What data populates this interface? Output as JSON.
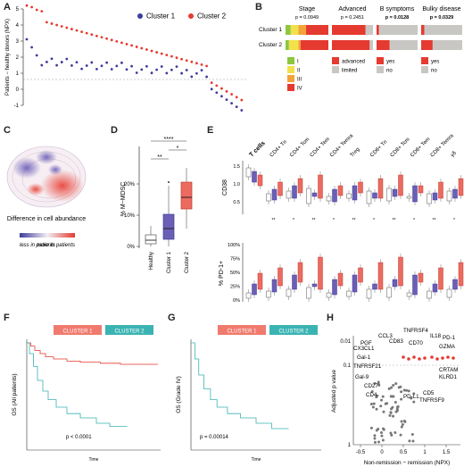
{
  "letters": {
    "a": "A",
    "b": "B",
    "c": "C",
    "d": "D",
    "e": "E",
    "f": "F",
    "g": "G",
    "h": "H"
  },
  "colors": {
    "cluster1": "#3d3b9c",
    "cluster2": "#e53a2f",
    "teal": "#3bb3b3",
    "salmon": "#f07a6e"
  },
  "panelA": {
    "ylabel": "Patients − healthy donors (NPX)",
    "legend1": "Cluster 1",
    "legend2": "Cluster 2",
    "yticks": [
      "5",
      "4",
      "3",
      "2",
      "1",
      "0",
      "-1"
    ]
  },
  "panelB": {
    "headers": [
      {
        "label": "Stage",
        "p": "p = 0.0949",
        "bold": false
      },
      {
        "label": "Advanced",
        "p": "p = 0.2451",
        "bold": false
      },
      {
        "label": "B symptoms",
        "p": "p = 0.0128",
        "bold": true
      },
      {
        "label": "Bulky disease",
        "p": "p = 0.0329",
        "bold": true
      }
    ],
    "rows": [
      "Cluster 1",
      "Cluster 2"
    ],
    "stage_legend": [
      "I",
      "II",
      "III",
      "IV"
    ],
    "advanced_legend": [
      "advanced",
      "limited"
    ],
    "bsym_legend": [
      "yes",
      "no"
    ],
    "bulky_legend": [
      "yes",
      "no"
    ]
  },
  "panelC": {
    "title": "Difference in cell abundance",
    "less": "less in patients",
    "more": "more in patients"
  },
  "panelD": {
    "ylabel": "% M−MDSC",
    "yticks": [
      "20%",
      "10%",
      "0%"
    ],
    "xticks": [
      "Healthy",
      "Cluster 1",
      "Cluster 2"
    ],
    "sig1": "****",
    "sig2": "*",
    "sig3": "**"
  },
  "panelE": {
    "celltypes": [
      "T cells",
      "CD4+ Tn",
      "CD4+ Tcm",
      "CD4+ Tem",
      "CD4+ Temra",
      "Treg",
      "CD8+ Tn",
      "CD8+ Tcm",
      "CD8+ Tem",
      "CD8+ Temra",
      "γδ"
    ],
    "ylabel_top": "CD38",
    "yticks_top": [
      "1.5",
      "1.0",
      "0.5"
    ],
    "ylabel_bottom": "% PD-1+",
    "yticks_bottom": [
      "100%",
      "75%",
      "50%",
      "25%",
      "0%"
    ]
  },
  "panelF": {
    "ylabel": "OS (All patients)",
    "xlabel": "Time",
    "pval": "p < 0.0001",
    "leg1": "CLUSTER 1",
    "leg2": "CLUSTER 2"
  },
  "panelG": {
    "ylabel": "OS (Grade IV)",
    "xlabel": "Time",
    "pval": "p = 0.00014",
    "leg1": "CLUSTER 1",
    "leg2": "CLUSTER 2"
  },
  "panelH": {
    "ylabel": "Adjusted p value",
    "xlabel": "Non-remission − remission (NPX)",
    "yticks": [
      "0.01",
      "0.1",
      "1"
    ],
    "xticks": [
      "-0.5",
      "0",
      "0.5",
      "1",
      "1.5"
    ],
    "labels": [
      "PGF",
      "CCL3",
      "CX3CL1",
      "Gal-1",
      "TNFRSF21",
      "Gal-9",
      "CD27",
      "CD4",
      "CD83",
      "TNFRSF4",
      "CD70",
      "IL18",
      "PD-1",
      "GZMA",
      "CRTAM",
      "KLRD1",
      "CD5",
      "TNFRSF9",
      "PD-L1"
    ]
  }
}
